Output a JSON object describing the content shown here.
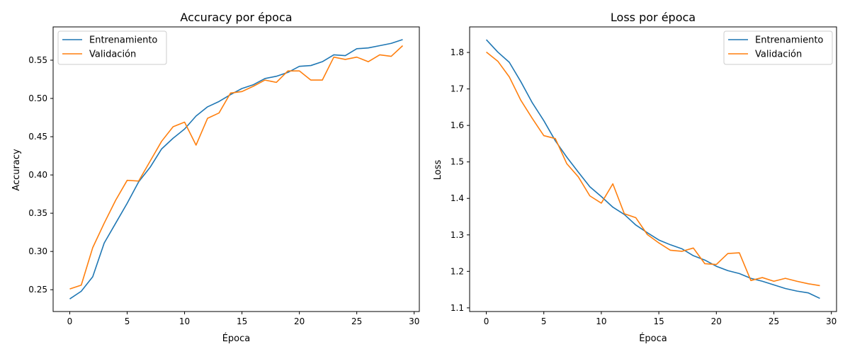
{
  "figure": {
    "background": "#ffffff",
    "colors": {
      "train": "#1f77b4",
      "val": "#ff7f0e",
      "axis": "#000000",
      "legend_border": "#cccccc"
    }
  },
  "chart_data": [
    {
      "type": "line",
      "title": "Accuracy por época",
      "xlabel": "Época",
      "ylabel": "Accuracy",
      "xlim": [
        -1.45,
        30.45
      ],
      "ylim": [
        0.2215,
        0.5935
      ],
      "xticks": [
        0,
        5,
        10,
        15,
        20,
        25,
        30
      ],
      "yticks": [
        0.25,
        0.3,
        0.35,
        0.4,
        0.45,
        0.5,
        0.55
      ],
      "ytick_labels": [
        "0.25",
        "0.30",
        "0.35",
        "0.40",
        "0.45",
        "0.50",
        "0.55"
      ],
      "grid": false,
      "legend": "upper left",
      "x": [
        0,
        1,
        2,
        3,
        4,
        5,
        6,
        7,
        8,
        9,
        10,
        11,
        12,
        13,
        14,
        15,
        16,
        17,
        18,
        19,
        20,
        21,
        22,
        23,
        24,
        25,
        26,
        27,
        28,
        29
      ],
      "series": [
        {
          "name": "Entrenamiento",
          "color": "#1f77b4",
          "values": [
            0.238,
            0.248,
            0.267,
            0.311,
            0.337,
            0.363,
            0.391,
            0.41,
            0.434,
            0.448,
            0.46,
            0.477,
            0.489,
            0.496,
            0.505,
            0.513,
            0.518,
            0.526,
            0.529,
            0.534,
            0.542,
            0.543,
            0.548,
            0.557,
            0.556,
            0.565,
            0.566,
            0.569,
            0.572,
            0.577
          ]
        },
        {
          "name": "Validación",
          "color": "#ff7f0e",
          "values": [
            0.251,
            0.256,
            0.305,
            0.337,
            0.367,
            0.393,
            0.392,
            0.418,
            0.444,
            0.463,
            0.469,
            0.439,
            0.474,
            0.481,
            0.507,
            0.509,
            0.516,
            0.524,
            0.521,
            0.536,
            0.536,
            0.524,
            0.524,
            0.554,
            0.551,
            0.554,
            0.548,
            0.557,
            0.555,
            0.569
          ]
        }
      ]
    },
    {
      "type": "line",
      "title": "Loss por época",
      "xlabel": "Época",
      "ylabel": "Loss",
      "xlim": [
        -1.45,
        30.45
      ],
      "ylim": [
        1.09,
        1.87
      ],
      "xticks": [
        0,
        5,
        10,
        15,
        20,
        25,
        30
      ],
      "yticks": [
        1.1,
        1.2,
        1.3,
        1.4,
        1.5,
        1.6,
        1.7,
        1.8
      ],
      "ytick_labels": [
        "1.1",
        "1.2",
        "1.3",
        "1.4",
        "1.5",
        "1.6",
        "1.7",
        "1.8"
      ],
      "grid": false,
      "legend": "upper right",
      "x": [
        0,
        1,
        2,
        3,
        4,
        5,
        6,
        7,
        8,
        9,
        10,
        11,
        12,
        13,
        14,
        15,
        16,
        17,
        18,
        19,
        20,
        21,
        22,
        23,
        24,
        25,
        26,
        27,
        28,
        29
      ],
      "series": [
        {
          "name": "Entrenamiento",
          "color": "#1f77b4",
          "values": [
            1.835,
            1.801,
            1.773,
            1.72,
            1.662,
            1.613,
            1.558,
            1.513,
            1.472,
            1.432,
            1.405,
            1.376,
            1.356,
            1.327,
            1.306,
            1.286,
            1.273,
            1.262,
            1.243,
            1.231,
            1.214,
            1.202,
            1.194,
            1.181,
            1.173,
            1.163,
            1.153,
            1.146,
            1.141,
            1.126
          ]
        },
        {
          "name": "Validación",
          "color": "#ff7f0e",
          "values": [
            1.801,
            1.776,
            1.733,
            1.669,
            1.619,
            1.572,
            1.564,
            1.495,
            1.459,
            1.407,
            1.387,
            1.44,
            1.358,
            1.347,
            1.301,
            1.278,
            1.258,
            1.255,
            1.264,
            1.221,
            1.219,
            1.249,
            1.251,
            1.175,
            1.183,
            1.173,
            1.181,
            1.173,
            1.166,
            1.161
          ]
        }
      ]
    }
  ]
}
